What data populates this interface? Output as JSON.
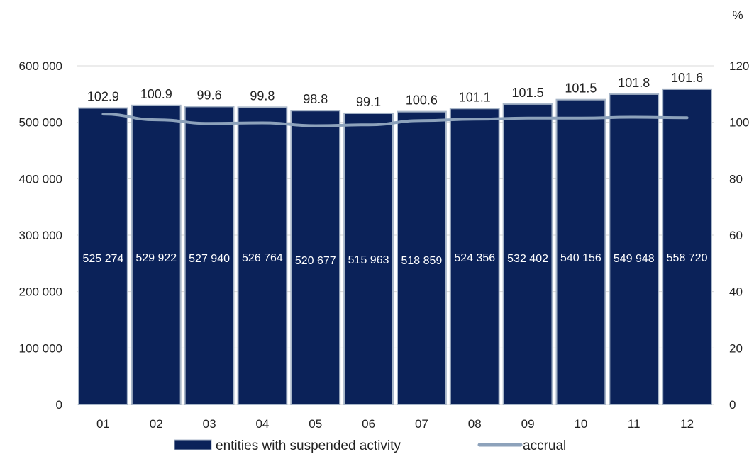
{
  "chart_data": {
    "type": "bar",
    "categories": [
      "01",
      "02",
      "03",
      "04",
      "05",
      "06",
      "07",
      "08",
      "09",
      "10",
      "11",
      "12"
    ],
    "series": [
      {
        "name": "entities with suspended activity",
        "type": "bar",
        "axis": "left",
        "color": "#0b2259",
        "values": [
          525274,
          529922,
          527940,
          526764,
          520677,
          515963,
          518859,
          524356,
          532402,
          540156,
          549948,
          558720
        ],
        "labels": [
          "525 274",
          "529 922",
          "527 940",
          "526 764",
          "520 677",
          "515 963",
          "518 859",
          "524 356",
          "532 402",
          "540 156",
          "549 948",
          "558 720"
        ]
      },
      {
        "name": "accrual",
        "type": "line",
        "axis": "right",
        "color": "#8da2bb",
        "values": [
          102.9,
          100.9,
          99.6,
          99.8,
          98.8,
          99.1,
          100.6,
          101.1,
          101.5,
          101.5,
          101.8,
          101.6
        ],
        "labels": [
          "102.9",
          "100.9",
          "99.6",
          "99.8",
          "98.8",
          "99.1",
          "100.6",
          "101.1",
          "101.5",
          "101.5",
          "101.8",
          "101.6"
        ]
      }
    ],
    "y_left": {
      "lim": [
        0,
        600000
      ],
      "ticks": [
        0,
        100000,
        200000,
        300000,
        400000,
        500000,
        600000
      ],
      "tick_labels": [
        "0",
        "100 000",
        "200 000",
        "300 000",
        "400 000",
        "500 000",
        "600 000"
      ]
    },
    "y_right": {
      "label": "%",
      "lim": [
        0,
        120
      ],
      "ticks": [
        0,
        20,
        40,
        60,
        80,
        100,
        120
      ],
      "tick_labels": [
        "0",
        "20",
        "40",
        "60",
        "80",
        "100",
        "120"
      ]
    },
    "grid": true,
    "legend_position": "bottom"
  }
}
